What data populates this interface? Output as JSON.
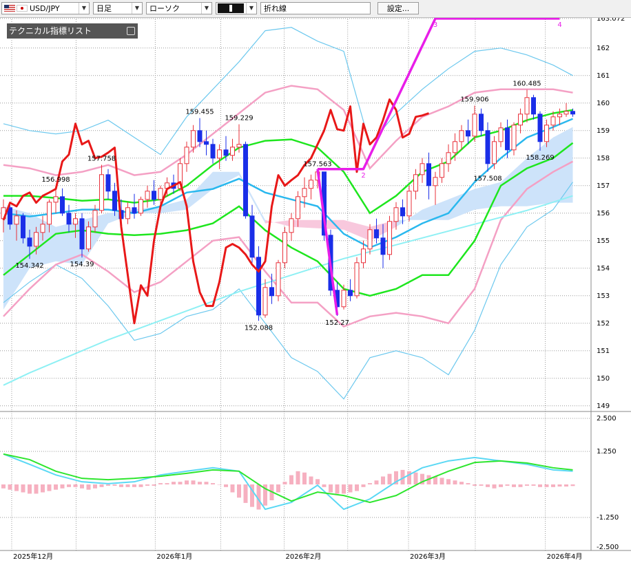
{
  "toolbar": {
    "symbol": "USD/JPY",
    "period": "日足",
    "chart_style": "ローソク",
    "line_style": "折れ線",
    "settings": "設定..."
  },
  "panel": {
    "title": "テクニカル指標リスト"
  },
  "chart_data": {
    "type": "candlestick",
    "ylim": [
      148.87,
      163.12
    ],
    "yticks": [
      149,
      150,
      151,
      152,
      153,
      154,
      155,
      156,
      157,
      158,
      159,
      160,
      161,
      162,
      163.072
    ],
    "xticks": [
      {
        "value": 1.26,
        "label": "2025年12月"
      },
      {
        "value": 23.2,
        "label": "2026年1月"
      },
      {
        "value": 42.9,
        "label": "2026年2月"
      },
      {
        "value": 61.9,
        "label": "2026年3月"
      },
      {
        "value": 82.8,
        "label": "2026年4月"
      }
    ],
    "x_gridlines": [
      11.1,
      33.2,
      52.6,
      72.1
    ],
    "grid": true,
    "up_color": "#e8303a",
    "down_color": "#1a2ee8",
    "ohlc": [
      [
        155.8,
        156.5,
        155.3,
        156.2
      ],
      [
        156.2,
        156.4,
        155.4,
        155.6
      ],
      [
        155.6,
        156.1,
        155.0,
        155.9
      ],
      [
        155.9,
        156.0,
        154.9,
        155.1
      ],
      [
        155.1,
        155.4,
        154.342,
        154.8
      ],
      [
        154.8,
        155.5,
        154.5,
        155.3
      ],
      [
        155.3,
        155.9,
        155.0,
        155.6
      ],
      [
        155.6,
        156.5,
        155.3,
        156.4
      ],
      [
        156.4,
        156.998,
        156.0,
        156.6
      ],
      [
        156.6,
        156.9,
        155.9,
        156.0
      ],
      [
        156.0,
        156.3,
        155.3,
        155.6
      ],
      [
        155.6,
        156.0,
        155.1,
        155.8
      ],
      [
        155.8,
        156.0,
        154.39,
        154.7
      ],
      [
        154.7,
        155.7,
        154.6,
        155.5
      ],
      [
        155.5,
        156.3,
        155.3,
        156.1
      ],
      [
        156.1,
        157.758,
        156.0,
        157.4
      ],
      [
        157.4,
        157.6,
        156.5,
        156.8
      ],
      [
        156.8,
        157.1,
        155.9,
        156.1
      ],
      [
        156.1,
        156.5,
        155.5,
        155.8
      ],
      [
        155.8,
        156.4,
        155.6,
        156.2
      ],
      [
        156.2,
        156.7,
        155.8,
        156.0
      ],
      [
        156.0,
        156.6,
        155.9,
        156.5
      ],
      [
        156.5,
        157.0,
        156.2,
        156.8
      ],
      [
        156.8,
        157.2,
        156.3,
        156.5
      ],
      [
        156.5,
        157.0,
        156.2,
        156.9
      ],
      [
        156.9,
        157.3,
        156.6,
        157.1
      ],
      [
        157.1,
        157.4,
        156.7,
        156.9
      ],
      [
        156.9,
        158.0,
        156.8,
        157.8
      ],
      [
        157.8,
        158.6,
        157.5,
        158.4
      ],
      [
        158.4,
        159.2,
        158.2,
        159.0
      ],
      [
        159.0,
        159.455,
        158.4,
        158.6
      ],
      [
        158.6,
        159.0,
        158.1,
        158.5
      ],
      [
        158.5,
        158.7,
        157.8,
        158.0
      ],
      [
        158.0,
        158.5,
        157.6,
        158.3
      ],
      [
        158.3,
        158.8,
        157.9,
        158.1
      ],
      [
        158.1,
        158.7,
        157.9,
        158.4
      ],
      [
        158.4,
        159.229,
        158.2,
        158.5
      ],
      [
        158.5,
        158.6,
        155.8,
        155.9
      ],
      [
        155.9,
        156.3,
        154.2,
        154.4
      ],
      [
        154.4,
        154.8,
        152.088,
        152.3
      ],
      [
        152.3,
        153.6,
        152.2,
        153.3
      ],
      [
        153.3,
        153.8,
        152.7,
        153.0
      ],
      [
        153.0,
        154.3,
        152.8,
        154.2
      ],
      [
        154.2,
        155.5,
        154.0,
        155.3
      ],
      [
        155.3,
        156.0,
        155.0,
        155.8
      ],
      [
        155.8,
        156.8,
        155.5,
        156.6
      ],
      [
        156.6,
        157.3,
        156.2,
        156.9
      ],
      [
        156.9,
        157.4,
        156.5,
        157.2
      ],
      [
        157.2,
        157.563,
        156.9,
        157.5
      ],
      [
        157.5,
        157.5,
        155.0,
        155.2
      ],
      [
        155.2,
        155.4,
        153.0,
        153.2
      ],
      [
        153.2,
        153.5,
        152.27,
        152.6
      ],
      [
        152.6,
        153.4,
        152.5,
        153.2
      ],
      [
        153.2,
        153.6,
        152.8,
        153.0
      ],
      [
        153.0,
        154.4,
        152.9,
        154.2
      ],
      [
        154.2,
        155.0,
        154.0,
        154.7
      ],
      [
        154.7,
        155.6,
        154.5,
        155.4
      ],
      [
        155.4,
        155.8,
        154.9,
        155.1
      ],
      [
        155.1,
        155.6,
        154.0,
        154.5
      ],
      [
        154.5,
        155.9,
        154.3,
        155.7
      ],
      [
        155.7,
        156.4,
        155.4,
        156.2
      ],
      [
        156.2,
        156.5,
        155.6,
        155.9
      ],
      [
        155.9,
        157.0,
        155.7,
        156.8
      ],
      [
        156.8,
        157.6,
        156.5,
        157.4
      ],
      [
        157.4,
        158.0,
        157.1,
        157.8
      ],
      [
        157.8,
        158.2,
        156.5,
        157.0
      ],
      [
        157.0,
        157.5,
        156.3,
        157.3
      ],
      [
        157.3,
        158.0,
        157.1,
        157.8
      ],
      [
        157.8,
        158.5,
        157.5,
        158.2
      ],
      [
        158.2,
        158.9,
        157.9,
        158.6
      ],
      [
        158.6,
        159.2,
        158.3,
        159.0
      ],
      [
        159.0,
        159.4,
        158.5,
        158.8
      ],
      [
        158.8,
        159.906,
        158.6,
        159.6
      ],
      [
        159.6,
        159.8,
        158.8,
        159.0
      ],
      [
        159.0,
        159.3,
        157.508,
        157.8
      ],
      [
        157.8,
        158.8,
        157.6,
        158.6
      ],
      [
        158.6,
        159.3,
        158.4,
        159.1
      ],
      [
        159.1,
        159.4,
        158.0,
        158.3
      ],
      [
        158.3,
        159.3,
        158.1,
        159.2
      ],
      [
        159.2,
        159.8,
        158.9,
        159.6
      ],
      [
        159.6,
        160.485,
        159.3,
        160.2
      ],
      [
        160.2,
        160.3,
        159.4,
        159.6
      ],
      [
        159.6,
        159.7,
        158.269,
        158.6
      ],
      [
        158.6,
        159.4,
        158.4,
        159.2
      ],
      [
        159.2,
        159.7,
        159.0,
        159.5
      ],
      [
        159.5,
        159.8,
        159.2,
        159.6
      ],
      [
        159.6,
        160.0,
        159.5,
        159.7
      ],
      [
        159.7,
        159.8,
        159.5,
        159.6
      ]
    ],
    "annotations": [
      156.998,
      157.758,
      154.342,
      154.39,
      159.455,
      159.229,
      152.088,
      157.563,
      152.27,
      159.906,
      160.485,
      157.508,
      158.269
    ],
    "cloud": {
      "colors": [
        "#cde3fa",
        "#f8c8dd"
      ],
      "span_a": [
        156.25,
        156.0,
        155.5,
        155.75,
        156.0,
        156.13,
        156.25,
        156.5,
        157.5,
        157.5,
        155.75,
        155.5,
        155.45,
        155.4,
        155.0,
        155.5,
        156.13,
        156.5,
        156.88,
        157.13,
        158.0,
        158.75,
        159.13
      ],
      "span_b": [
        152.5,
        154.0,
        154.25,
        154.13,
        155.63,
        156.0,
        156.0,
        156.13,
        156.88,
        157.38,
        155.63,
        155.75,
        155.75,
        155.75,
        155.5,
        155.75,
        155.75,
        155.75,
        156.13,
        156.25,
        156.25,
        156.38,
        156.38
      ]
    },
    "indicators": {
      "x": [
        0,
        4,
        8,
        12,
        16,
        20,
        24,
        28,
        32,
        36,
        40,
        44,
        48,
        52,
        56,
        60,
        64,
        68,
        72,
        76,
        80,
        84,
        87
      ],
      "series": [
        {
          "color": "#6cc8ee",
          "width": 1.2,
          "values": [
            159.25,
            159.0,
            158.88,
            159.0,
            159.38,
            158.75,
            158.13,
            159.5,
            160.5,
            161.5,
            162.63,
            162.75,
            162.25,
            161.88,
            158.5,
            159.63,
            160.5,
            161.25,
            161.88,
            162.0,
            161.75,
            161.38,
            161.0
          ]
        },
        {
          "color": "#6cc8ee",
          "width": 1.2,
          "values": [
            152.75,
            153.5,
            154.13,
            153.63,
            152.63,
            151.38,
            151.63,
            152.25,
            152.5,
            153.25,
            152.0,
            150.75,
            150.25,
            149.25,
            150.75,
            151.0,
            150.75,
            150.13,
            151.75,
            154.13,
            155.5,
            156.13,
            157.13
          ]
        },
        {
          "color": "#f4a0c4",
          "width": 2.5,
          "values": [
            157.75,
            157.63,
            157.38,
            157.5,
            157.75,
            157.38,
            157.5,
            158.13,
            158.88,
            159.63,
            160.38,
            160.63,
            160.5,
            159.75,
            157.63,
            158.63,
            159.5,
            159.88,
            160.38,
            160.5,
            160.5,
            160.5,
            160.38
          ]
        },
        {
          "color": "#f4a0c4",
          "width": 2.5,
          "values": [
            152.25,
            153.25,
            154.13,
            154.5,
            153.88,
            153.13,
            153.5,
            154.25,
            155.0,
            155.13,
            153.88,
            152.75,
            152.75,
            151.88,
            152.25,
            152.38,
            152.25,
            152.0,
            153.25,
            155.75,
            156.88,
            157.5,
            157.88
          ]
        },
        {
          "color": "#8ef0f4",
          "width": 2,
          "values": [
            149.75,
            150.2,
            150.6,
            151.0,
            151.4,
            151.75,
            152.1,
            152.45,
            152.8,
            153.15,
            153.45,
            153.75,
            154.05,
            154.35,
            154.6,
            154.85,
            155.1,
            155.35,
            155.6,
            155.85,
            156.1,
            156.4,
            156.63
          ]
        },
        {
          "color": "#1ee61e",
          "width": 2.5,
          "values": [
            156.63,
            156.63,
            156.55,
            156.45,
            156.5,
            156.38,
            156.5,
            157.0,
            157.75,
            158.38,
            158.63,
            158.68,
            158.38,
            157.5,
            156.0,
            156.63,
            157.5,
            157.88,
            158.75,
            159.0,
            159.38,
            159.63,
            159.75
          ]
        },
        {
          "color": "#1ee61e",
          "width": 2.5,
          "values": [
            153.75,
            154.5,
            155.25,
            155.38,
            155.25,
            155.2,
            155.25,
            155.38,
            155.63,
            156.25,
            155.38,
            154.75,
            154.25,
            153.25,
            153.0,
            153.25,
            153.75,
            153.75,
            155.0,
            157.0,
            157.63,
            158.0,
            158.55
          ]
        },
        {
          "color": "#2ab8ee",
          "width": 2.5,
          "values": [
            156.0,
            155.88,
            156.0,
            156.13,
            156.13,
            156.0,
            156.25,
            156.75,
            156.88,
            157.25,
            156.75,
            156.5,
            156.25,
            155.25,
            154.75,
            155.13,
            155.63,
            156.0,
            157.13,
            158.0,
            158.75,
            159.13,
            159.43
          ]
        }
      ]
    },
    "lines": [
      {
        "color": "#e81818",
        "width": 3,
        "x": [
          0,
          1,
          2,
          3,
          4,
          5,
          6,
          7,
          8,
          9,
          10,
          11,
          12,
          13,
          14,
          15,
          16,
          17,
          18,
          19,
          20,
          21,
          22,
          23,
          24,
          25,
          26,
          27,
          28,
          29,
          30,
          31,
          32,
          33,
          34,
          35,
          36,
          37,
          38,
          39,
          40,
          41,
          42,
          43,
          44,
          45,
          46,
          47,
          48,
          49,
          50,
          51,
          52,
          53,
          54,
          55,
          56,
          57,
          58,
          59,
          60,
          61,
          62,
          63,
          64,
          65
        ],
        "values": [
          155.75,
          156.38,
          156.25,
          156.63,
          156.75,
          156.38,
          156.63,
          156.75,
          156.88,
          157.88,
          158.13,
          159.25,
          158.5,
          158.63,
          158.0,
          158.05,
          158.2,
          158.38,
          155.5,
          153.75,
          152.0,
          153.38,
          153.0,
          155.0,
          156.25,
          156.88,
          157.0,
          157.13,
          156.25,
          154.25,
          153.13,
          152.63,
          152.63,
          153.5,
          154.75,
          154.88,
          154.75,
          154.5,
          154.13,
          153.88,
          154.25,
          156.25,
          157.38,
          157.0,
          157.2,
          157.38,
          157.75,
          158.0,
          158.5,
          159.0,
          159.75,
          159.05,
          159.0,
          159.88,
          157.5,
          159.25,
          158.5,
          158.75,
          159.38,
          160.13,
          159.75,
          158.75,
          158.88,
          159.5,
          159.55,
          159.63
        ]
      },
      {
        "color": "#e81ee8",
        "width": 3.5,
        "x": [
          48,
          51
        ],
        "values": [
          157.6,
          152.3
        ]
      },
      {
        "color": "#e81ee8",
        "width": 3.5,
        "x": [
          48,
          55,
          66,
          85
        ],
        "values": [
          157.6,
          157.6,
          163.072,
          163.072
        ],
        "point_labels": [
          null,
          "2",
          "3",
          "4"
        ]
      }
    ],
    "macd": {
      "ylim": [
        -2.5,
        2.5
      ],
      "yticks": [
        {
          "value": 2.5,
          "label": "2.500"
        },
        {
          "value": 1.25,
          "label": "1.250"
        },
        {
          "value": -1.25,
          "label": "-1.250"
        },
        {
          "value": -2.5,
          "label": "-2.500"
        }
      ],
      "series": [
        {
          "color": "#5ad8f4",
          "values": [
            1.15,
            0.76,
            0.36,
            0.1,
            0.03,
            0.1,
            0.36,
            0.5,
            0.63,
            0.5,
            -0.94,
            -0.68,
            -0.03,
            -0.94,
            -0.55,
            0.1,
            0.63,
            0.89,
            1.02,
            0.89,
            0.76,
            0.55,
            0.5
          ]
        },
        {
          "color": "#2ee62e",
          "values": [
            1.15,
            0.94,
            0.5,
            0.23,
            0.18,
            0.23,
            0.31,
            0.42,
            0.55,
            0.5,
            -0.16,
            -0.63,
            -0.29,
            -0.42,
            -0.68,
            -0.42,
            0.1,
            0.5,
            0.83,
            0.89,
            0.81,
            0.63,
            0.55
          ]
        }
      ],
      "histogram": {
        "color": "#f6b0c0",
        "values": [
          -0.15,
          -0.2,
          -0.25,
          -0.3,
          -0.35,
          -0.35,
          -0.3,
          -0.25,
          -0.2,
          -0.15,
          -0.1,
          -0.1,
          -0.15,
          -0.2,
          -0.15,
          -0.1,
          -0.05,
          -0.05,
          -0.1,
          -0.1,
          -0.1,
          -0.1,
          -0.05,
          -0.05,
          0.05,
          0.05,
          0.1,
          0.1,
          0.15,
          0.15,
          0.1,
          0.1,
          0.05,
          0,
          -0.1,
          -0.3,
          -0.5,
          -0.7,
          -0.85,
          -0.95,
          -0.8,
          -0.6,
          -0.3,
          0.1,
          0.35,
          0.5,
          0.45,
          0.3,
          0.2,
          -0.1,
          -0.3,
          -0.35,
          -0.35,
          -0.3,
          -0.25,
          -0.1,
          0.05,
          0.15,
          0.3,
          0.4,
          0.5,
          0.55,
          0.5,
          0.45,
          0.4,
          0.35,
          0.3,
          0.25,
          0.2,
          0.15,
          0.1,
          0.05,
          -0.05,
          -0.05,
          -0.1,
          -0.15,
          -0.1,
          -0.05,
          -0.1,
          -0.1,
          -0.05,
          -0.05,
          -0.1,
          -0.1,
          -0.1,
          -0.08,
          -0.08,
          -0.06
        ]
      }
    }
  }
}
